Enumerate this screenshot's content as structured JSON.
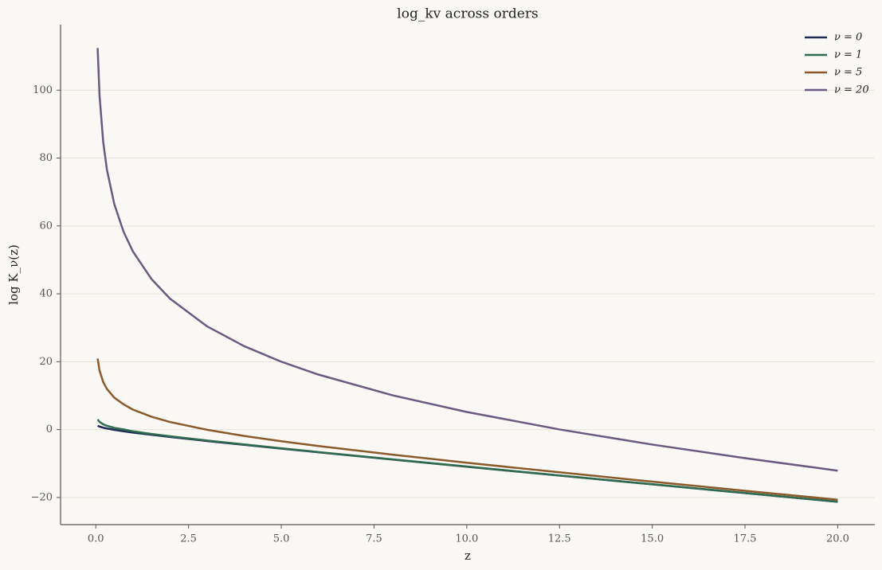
{
  "chart_data": {
    "type": "line",
    "title": "log_kv across orders",
    "xlabel": "z",
    "ylabel": "log K_ν(z)",
    "x": [
      0.05,
      0.1,
      0.2,
      0.3,
      0.5,
      0.75,
      1,
      1.5,
      2,
      3,
      4,
      5,
      6,
      8,
      10,
      12.5,
      15,
      17.5,
      20
    ],
    "series": [
      {
        "name": "ν = 0",
        "color": "#1f2d56",
        "values": [
          1.14,
          0.89,
          0.56,
          0.32,
          -0.08,
          -0.49,
          -0.87,
          -1.54,
          -2.17,
          -3.36,
          -4.5,
          -5.6,
          -6.69,
          -8.83,
          -10.94,
          -13.55,
          -16.14,
          -18.71,
          -21.28
        ]
      },
      {
        "name": "ν = 1",
        "color": "#2e6b4f",
        "values": [
          2.99,
          2.29,
          1.56,
          1.12,
          0.5,
          0.05,
          -0.51,
          -1.28,
          -1.97,
          -3.21,
          -4.38,
          -5.51,
          -6.61,
          -8.77,
          -10.89,
          -13.51,
          -16.1,
          -18.68,
          -21.25
        ]
      },
      {
        "name": "ν = 5",
        "color": "#8b5a2b",
        "values": [
          20.93,
          17.46,
          13.99,
          11.97,
          9.4,
          7.44,
          5.89,
          3.79,
          2.24,
          -0.06,
          -1.87,
          -3.42,
          -4.83,
          -7.39,
          -9.76,
          -12.59,
          -15.34,
          -18.02,
          -20.67
        ]
      },
      {
        "name": "ν = 20",
        "color": "#6b5a80",
        "values": [
          112.42,
          98.56,
          84.7,
          76.59,
          66.37,
          58.26,
          52.5,
          44.37,
          38.59,
          30.42,
          24.58,
          20.0,
          16.21,
          10.1,
          5.19,
          0.04,
          -4.41,
          -8.41,
          -12.1
        ]
      }
    ],
    "xlim": [
      -0.95,
      21.0
    ],
    "ylim": [
      -28.0,
      119.3
    ],
    "xticks": [
      {
        "value": 0,
        "label": "0.0"
      },
      2.5,
      {
        "value": 5,
        "label": "5.0"
      },
      7.5,
      {
        "value": 10,
        "label": "10.0"
      },
      12.5,
      {
        "value": 15,
        "label": "15.0"
      },
      17.5,
      {
        "value": 20,
        "label": "20.0"
      }
    ],
    "yticks": [
      {
        "value": -20,
        "label": "−20"
      },
      0,
      20,
      40,
      60,
      80,
      100
    ],
    "grid": true,
    "legend": "upper right"
  }
}
